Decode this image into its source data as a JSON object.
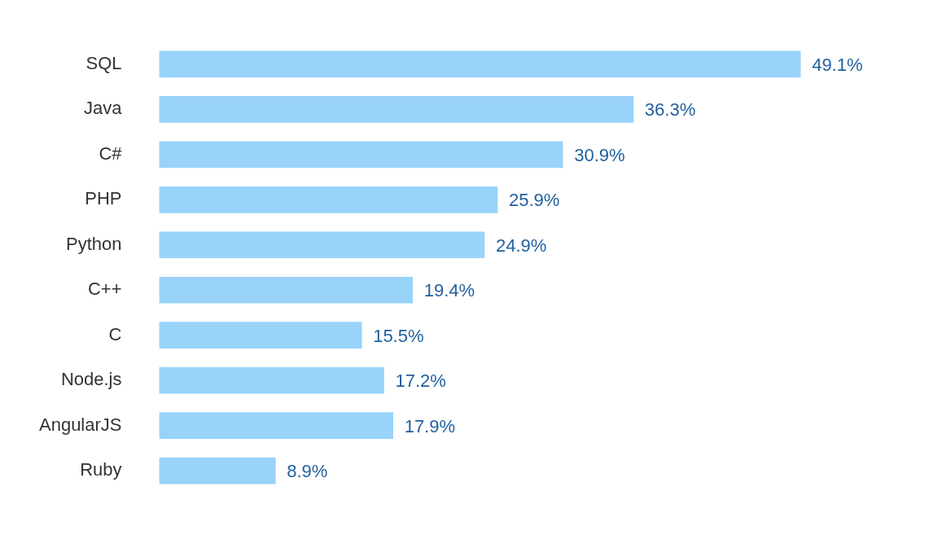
{
  "chart_data": {
    "type": "bar",
    "orientation": "horizontal",
    "categories": [
      "SQL",
      "Java",
      "C#",
      "PHP",
      "Python",
      "C++",
      "C",
      "Node.js",
      "AngularJS",
      "Ruby"
    ],
    "values": [
      49.1,
      36.3,
      30.9,
      25.9,
      24.9,
      19.4,
      15.5,
      17.2,
      17.9,
      8.9
    ],
    "value_labels": [
      "49.1%",
      "36.3%",
      "30.9%",
      "25.9%",
      "24.9%",
      "19.4%",
      "15.5%",
      "17.2%",
      "17.9%",
      "8.9%"
    ],
    "color": "#99d3fa",
    "legend": false
  }
}
